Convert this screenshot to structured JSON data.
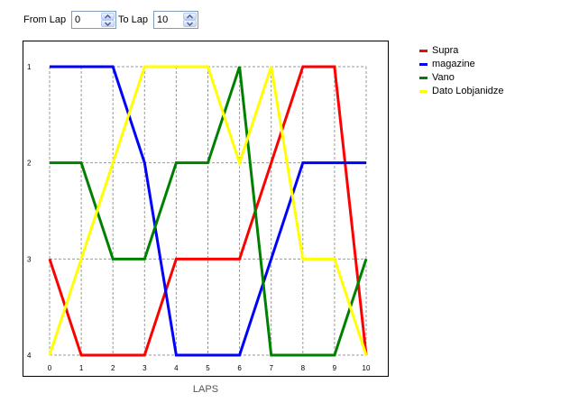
{
  "controls": {
    "from_label": "From Lap",
    "from_value": "0",
    "to_label": "To Lap",
    "to_value": "10"
  },
  "chart_data": {
    "type": "line",
    "x": [
      0,
      1,
      2,
      3,
      4,
      5,
      6,
      7,
      8,
      9,
      10
    ],
    "xlabel": "LAPS",
    "ylabel": "",
    "xlim": [
      0,
      10
    ],
    "ylim": [
      1,
      4
    ],
    "y_inverted": true,
    "x_ticks": [
      "0",
      "1",
      "2",
      "3",
      "4",
      "5",
      "6",
      "7",
      "8",
      "9",
      "10"
    ],
    "y_ticks": [
      "1",
      "2",
      "3",
      "4"
    ],
    "grid": true,
    "legend_position": "right",
    "series": [
      {
        "name": "Supra",
        "color": "#ff0000",
        "values": [
          3,
          4,
          4,
          4,
          3,
          3,
          3,
          2,
          1,
          1,
          4
        ]
      },
      {
        "name": "magazine",
        "color": "#0000ff",
        "values": [
          1,
          1,
          1,
          2,
          4,
          4,
          4,
          3,
          2,
          2,
          2
        ]
      },
      {
        "name": "Vano",
        "color": "#008000",
        "values": [
          2,
          2,
          3,
          3,
          2,
          2,
          1,
          4,
          4,
          4,
          3
        ]
      },
      {
        "name": "Dato Lobjanidze",
        "color": "#ffff00",
        "values": [
          4,
          3,
          2,
          1,
          1,
          1,
          2,
          1,
          3,
          3,
          4
        ]
      }
    ]
  }
}
